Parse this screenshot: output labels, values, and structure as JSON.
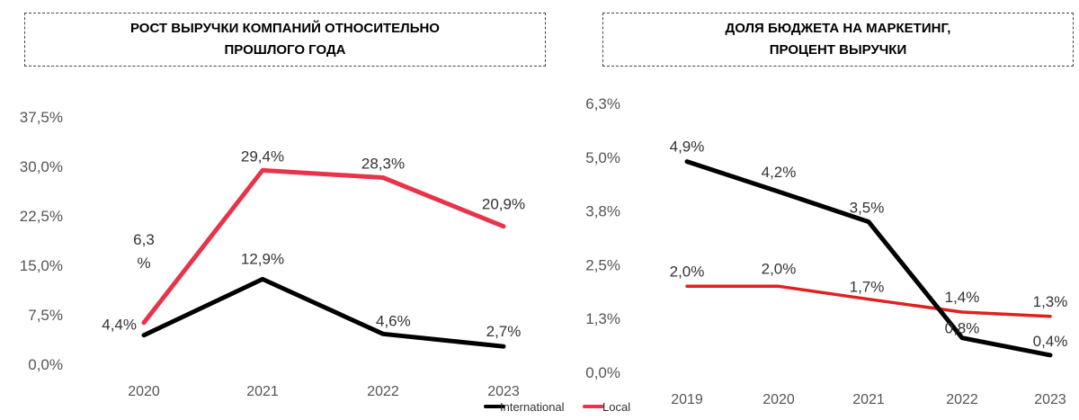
{
  "chart_data": [
    {
      "type": "line",
      "title_lines": [
        "РОСТ ВЫРУЧКИ КОМПАНИЙ ОТНОСИТЕЛЬНО",
        "ПРОШЛОГО ГОДА"
      ],
      "categories": [
        "2020",
        "2021",
        "2022",
        "2023"
      ],
      "yticks": [
        "0,0%",
        "7,5%",
        "15,0%",
        "22,5%",
        "30,0%",
        "37,5%"
      ],
      "ylim": [
        0,
        37.5
      ],
      "grid": false,
      "series": [
        {
          "name": "International",
          "color": "#000000",
          "values": [
            4.4,
            12.9,
            4.6,
            2.7
          ],
          "labels": [
            "4,4%",
            "12,9%",
            "4,6%",
            "2,7%"
          ]
        },
        {
          "name": "Local",
          "color": "#e8334a",
          "values": [
            6.3,
            29.4,
            28.3,
            20.9
          ],
          "labels": [
            "6,3\n%",
            "29,4%",
            "28,3%",
            "20,9%"
          ]
        }
      ],
      "legend": {
        "position": "bottom",
        "items": [
          "International",
          "Local"
        ]
      }
    },
    {
      "type": "line",
      "title_lines": [
        "ДОЛЯ БЮДЖЕТА НА МАРКЕТИНГ,",
        "ПРОЦЕНТ ВЫРУЧКИ"
      ],
      "categories": [
        "2019",
        "2020",
        "2021",
        "2022",
        "2023"
      ],
      "yticks": [
        "0,0%",
        "1,3%",
        "2,5%",
        "3,8%",
        "5,0%",
        "6,3%"
      ],
      "ylim": [
        0,
        6.25
      ],
      "grid": false,
      "series": [
        {
          "name": "International",
          "color": "#000000",
          "values": [
            4.9,
            4.2,
            3.5,
            0.8,
            0.4
          ],
          "labels": [
            "4,9%",
            "4,2%",
            "3,5%",
            "0,8%",
            "0,4%"
          ]
        },
        {
          "name": "Local",
          "color": "#e02020",
          "values": [
            2.0,
            2.0,
            1.7,
            1.4,
            1.3
          ],
          "labels": [
            "2,0%",
            "2,0%",
            "1,7%",
            "1,4%",
            "1,3%"
          ]
        }
      ]
    }
  ]
}
